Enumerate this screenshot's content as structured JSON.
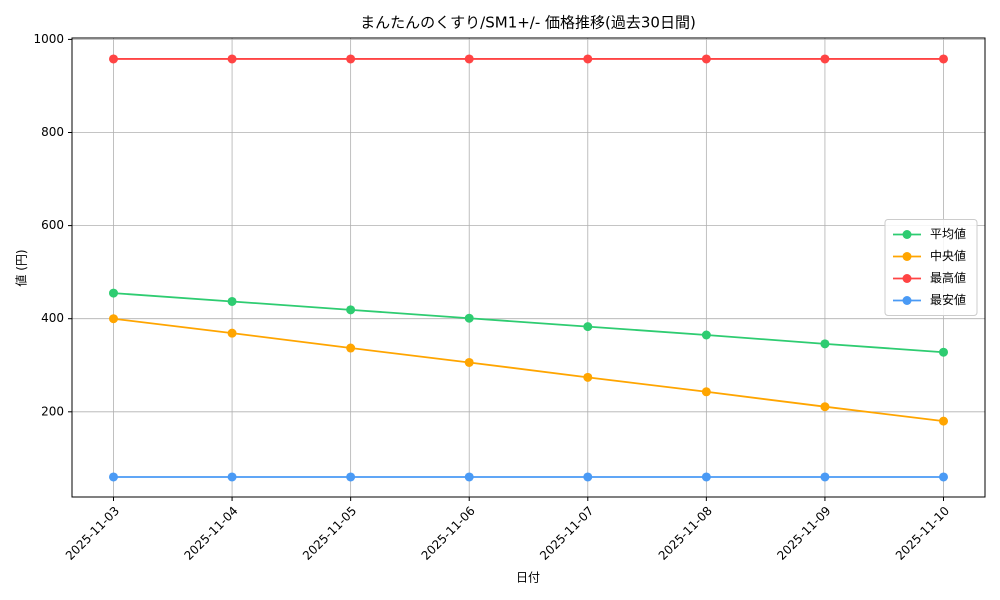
{
  "chart_data": {
    "type": "line",
    "title": "まんたんのくすり/SM1+/- 価格推移(過去30日間)",
    "xlabel": "日付",
    "ylabel": "値 (円)",
    "categories": [
      "2025-11-03",
      "2025-11-04",
      "2025-11-05",
      "2025-11-06",
      "2025-11-07",
      "2025-11-08",
      "2025-11-09",
      "2025-11-10"
    ],
    "series": [
      {
        "name": "平均値",
        "color": "#2ecc71",
        "values": [
          455,
          437,
          419,
          401,
          383,
          365,
          346,
          328
        ]
      },
      {
        "name": "中央値",
        "color": "#ffa500",
        "values": [
          400,
          369,
          337,
          306,
          274,
          243,
          211,
          180
        ]
      },
      {
        "name": "最高値",
        "color": "#ff4444",
        "values": [
          958,
          958,
          958,
          958,
          958,
          958,
          958,
          958
        ]
      },
      {
        "name": "最安値",
        "color": "#4a9af5",
        "values": [
          60,
          60,
          60,
          60,
          60,
          60,
          60,
          60
        ]
      }
    ],
    "ylim": [
      17,
      1003
    ],
    "yticks": [
      200,
      400,
      600,
      800,
      1000
    ],
    "grid": true,
    "legend": "center right"
  }
}
